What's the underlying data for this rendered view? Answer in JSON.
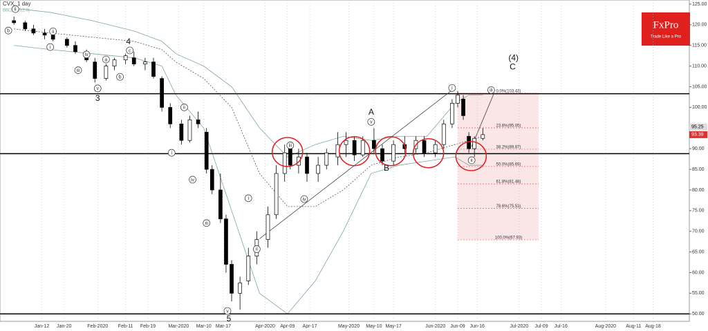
{
  "chart_data": {
    "type": "candlestick",
    "title": "CVX, 1 day",
    "subtitle": "BB(20,2.0,2.0)",
    "logo": {
      "name": "FxPro",
      "tagline": "Trade Like a Pro"
    },
    "xlim": [
      -3,
      244
    ],
    "ylim": [
      48.2,
      126
    ],
    "xticks": [
      {
        "value": 12,
        "label": "Jan-12"
      },
      {
        "value": 20,
        "label": "Jan-20"
      },
      {
        "value": 32,
        "label": "Feb-2020"
      },
      {
        "value": 42,
        "label": "Feb-11"
      },
      {
        "value": 50,
        "label": "Feb-19"
      },
      {
        "value": 61,
        "label": "Mar-2020"
      },
      {
        "value": 70,
        "label": "Mar-10"
      },
      {
        "value": 77,
        "label": "Mar-17"
      },
      {
        "value": 92,
        "label": "Apr-2020"
      },
      {
        "value": 100,
        "label": "Apr-09"
      },
      {
        "value": 108,
        "label": "Apr-17"
      },
      {
        "value": 122,
        "label": "May-2020"
      },
      {
        "value": 131,
        "label": "May-10"
      },
      {
        "value": 138,
        "label": "May-17"
      },
      {
        "value": 153,
        "label": "Jun-2020"
      },
      {
        "value": 161,
        "label": "Jun-09"
      },
      {
        "value": 168,
        "label": "Jun-16"
      },
      {
        "value": 183,
        "label": "Jul-2020"
      },
      {
        "value": 191,
        "label": "Jul-09"
      },
      {
        "value": 198,
        "label": "Jul-16"
      },
      {
        "value": 214,
        "label": "Aug-2020"
      },
      {
        "value": 224,
        "label": "Aug-11"
      },
      {
        "value": 231,
        "label": "Aug-18"
      }
    ],
    "yticks": [
      {
        "value": 125,
        "label": "125.00"
      },
      {
        "value": 120,
        "label": "120.00"
      },
      {
        "value": 115,
        "label": "115.00"
      },
      {
        "value": 110,
        "label": "110.00"
      },
      {
        "value": 105,
        "label": "105.00"
      },
      {
        "value": 100,
        "label": "100.00"
      },
      {
        "value": 95,
        "label": "95.00"
      },
      {
        "value": 90,
        "label": "90.00"
      },
      {
        "value": 85,
        "label": "85.00"
      },
      {
        "value": 80,
        "label": "80.00"
      },
      {
        "value": 75,
        "label": "75.00"
      },
      {
        "value": 70,
        "label": "70.00"
      },
      {
        "value": 65,
        "label": "65.00"
      },
      {
        "value": 60,
        "label": "60.00"
      },
      {
        "value": 55,
        "label": "55.00"
      },
      {
        "value": 50,
        "label": "50.00"
      }
    ],
    "x": [
      2,
      6,
      9,
      13,
      16,
      21,
      24,
      28,
      31,
      35,
      38,
      42,
      45,
      49,
      52,
      55,
      58,
      62,
      65,
      68,
      71,
      73,
      76,
      78,
      80,
      83,
      86,
      89,
      93,
      96,
      99,
      101,
      104,
      107,
      111,
      114,
      118,
      121,
      124,
      127,
      131,
      134,
      138,
      142,
      146,
      149,
      153,
      156,
      159,
      161,
      163,
      165,
      167,
      170
    ],
    "open": [
      121,
      120.5,
      119,
      118,
      117.5,
      116.5,
      115,
      113.5,
      111,
      107,
      110,
      111.5,
      112,
      110.5,
      111,
      107,
      100,
      96,
      92,
      97,
      94,
      85,
      80,
      73,
      62,
      55,
      58,
      64,
      68,
      74,
      84,
      90,
      86,
      88,
      84,
      86,
      88,
      91,
      92,
      88.5,
      92,
      90,
      87,
      91,
      90,
      92,
      89,
      91,
      96,
      101,
      102,
      93,
      90,
      92.5
    ],
    "high": [
      122,
      121,
      120,
      119,
      118.5,
      117,
      116,
      114,
      112,
      110.5,
      112,
      113,
      113.5,
      112,
      112,
      107.5,
      101,
      97,
      98,
      99,
      95,
      86,
      84,
      74,
      63,
      59,
      66,
      70,
      76,
      86,
      91,
      91,
      90,
      89,
      88,
      90,
      94,
      94,
      93,
      93,
      95,
      91,
      92,
      93,
      93,
      93,
      92,
      97,
      102,
      104,
      103,
      94,
      93,
      95
    ],
    "low": [
      120,
      118.5,
      117.5,
      116.5,
      116,
      114.5,
      113,
      111,
      106,
      106.5,
      109,
      110.5,
      110,
      109,
      107,
      99,
      95,
      91,
      91.5,
      95,
      84,
      79,
      72,
      60,
      53,
      51,
      57,
      62,
      66,
      73,
      82,
      85,
      84,
      82,
      82,
      85,
      86,
      88,
      87,
      88,
      89,
      86,
      86,
      89,
      89,
      88,
      88,
      90,
      95,
      100,
      97,
      89,
      88,
      92
    ],
    "close": [
      120.5,
      119,
      118,
      117.5,
      116.5,
      115,
      113.5,
      111.5,
      107,
      110,
      111.5,
      112.5,
      110.5,
      111,
      107.5,
      100,
      96,
      92,
      97,
      96,
      85,
      80,
      73,
      62,
      55,
      57.5,
      64,
      68,
      74,
      84,
      89,
      86,
      88,
      84,
      86,
      89,
      91,
      92,
      88.5,
      92,
      90,
      87,
      91,
      90,
      92,
      89,
      91,
      96,
      101,
      103,
      98,
      90,
      92.5,
      93.4
    ],
    "up_color": "#ffffff",
    "down_color": "#000000",
    "bb_x": [
      2,
      15,
      30,
      45,
      55,
      60,
      70,
      80,
      90,
      100,
      110,
      120,
      130,
      140,
      150,
      160,
      165,
      170
    ],
    "bb_upper": [
      124,
      123,
      121,
      118.5,
      116,
      113,
      110,
      105,
      95,
      88,
      91,
      93,
      92,
      93,
      93,
      101,
      103,
      103
    ],
    "bb_middle": [
      119,
      118,
      117,
      116,
      114,
      111,
      107,
      100,
      84,
      76,
      76,
      80,
      86,
      88,
      89,
      91,
      92,
      93
    ],
    "bb_lower": [
      115,
      114,
      113,
      112,
      110,
      103,
      95,
      75,
      55,
      50,
      58,
      70,
      84,
      86,
      87,
      88,
      86,
      86
    ],
    "bb_color": "#7fa898",
    "hlines": [
      103.3,
      88.8,
      50
    ],
    "fib_x": [
      161,
      190
    ],
    "fib_levels": [
      103.43,
      95.05,
      89.87,
      85.69,
      81.48,
      75.53,
      67.93
    ],
    "fib_labels": [
      "0.0%(103.43)",
      "23.6%(95.05)",
      "38.2%(89.87)",
      "50.0%(85.69)",
      "61.8%(81.48)",
      "78.6%(75.53)",
      "100.0%(67.93)"
    ],
    "fib_color": "#e05a5a",
    "price_labels": [
      95.25,
      93.39
    ],
    "price_label_colors": [
      "#dddddd",
      "#e03030"
    ],
    "circles": [
      {
        "x": 100,
        "y": 89.2
      },
      {
        "x": 124,
        "y": 89.4
      },
      {
        "x": 137,
        "y": 89.4
      },
      {
        "x": 150.5,
        "y": 88.9
      },
      {
        "x": 165.8,
        "y": 88.2
      }
    ],
    "trendlines": [
      {
        "x": [
          90,
          159
        ],
        "y": [
          68.2,
          104.2
        ]
      },
      {
        "x": [
          166,
          174
        ],
        "y": [
          90.5,
          103.4
        ]
      }
    ],
    "annotations": [
      {
        "text": "ii",
        "x": 2.5,
        "y": 123.8,
        "circled": true
      },
      {
        "text": "b",
        "x": 0,
        "y": 118.6,
        "circled": true
      },
      {
        "text": "ii",
        "x": 16,
        "y": 118.4,
        "circled": true
      },
      {
        "text": "i",
        "x": 15,
        "y": 114.6,
        "circled": true
      },
      {
        "text": "iv",
        "x": 28,
        "y": 112.8,
        "circled": true
      },
      {
        "text": "iii",
        "x": 25,
        "y": 109,
        "circled": true
      },
      {
        "text": "a",
        "x": 35,
        "y": 111.6,
        "circled": true
      },
      {
        "text": "c",
        "x": 43.5,
        "y": 113.8,
        "circled": true
      },
      {
        "text": "b",
        "x": 40,
        "y": 107.4,
        "circled": true
      },
      {
        "text": "4",
        "x": 43,
        "y": 115.9,
        "circled": false
      },
      {
        "text": "v",
        "x": 32,
        "y": 104.6,
        "circled": true
      },
      {
        "text": "3",
        "x": 32,
        "y": 102.2,
        "circled": false
      },
      {
        "text": "ii",
        "x": 63,
        "y": 100,
        "circled": true
      },
      {
        "text": "i",
        "x": 58.5,
        "y": 89,
        "circled": true
      },
      {
        "text": "iv",
        "x": 66,
        "y": 82.5,
        "circled": true
      },
      {
        "text": "iii",
        "x": 71,
        "y": 72,
        "circled": true
      },
      {
        "text": "v",
        "x": 78.5,
        "y": 50.7,
        "circled": true
      },
      {
        "text": "5",
        "x": 79,
        "y": 48.8,
        "circled": false
      },
      {
        "text": "iii",
        "x": 101,
        "y": 90.8,
        "circled": true
      },
      {
        "text": "iv",
        "x": 106,
        "y": 77.8,
        "circled": true
      },
      {
        "text": "i",
        "x": 86,
        "y": 78,
        "circled": true
      },
      {
        "text": "ii",
        "x": 89,
        "y": 65.7,
        "circled": true
      },
      {
        "text": "v",
        "x": 130,
        "y": 96.5,
        "circled": true
      },
      {
        "text": "A",
        "x": 130,
        "y": 98.8,
        "circled": false
      },
      {
        "text": "B",
        "x": 135.5,
        "y": 85.3,
        "circled": false
      },
      {
        "text": "i",
        "x": 159,
        "y": 104.7,
        "circled": true
      },
      {
        "text": "ii",
        "x": 166,
        "y": 87.2,
        "circled": true
      },
      {
        "text": "iii",
        "x": 173,
        "y": 104.2,
        "circled": true
      },
      {
        "text": "(4)",
        "x": 181,
        "y": 112,
        "circled": false
      },
      {
        "text": "C",
        "x": 180.7,
        "y": 109.8,
        "circled": false
      }
    ]
  }
}
